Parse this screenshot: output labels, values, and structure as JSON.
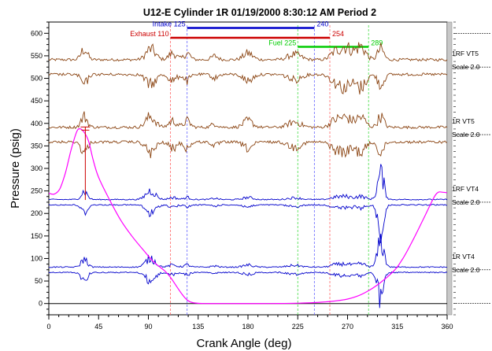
{
  "chart_data": {
    "type": "line",
    "title": "U12-E   Cylinder 1R   01/19/2000 8:30:12 AM Period 2",
    "xlabel": "Crank Angle (deg)",
    "ylabel": "Pressure (psig)",
    "xlim": [
      0,
      360
    ],
    "ylim": [
      -25,
      625
    ],
    "xticks": [
      0,
      45,
      90,
      135,
      180,
      225,
      270,
      315,
      360
    ],
    "yticks": [
      0,
      50,
      100,
      150,
      200,
      250,
      300,
      350,
      400,
      450,
      500,
      550,
      600
    ],
    "grid": false,
    "pressure_curve": {
      "color": "#ff00ff",
      "x": [
        0,
        5,
        10,
        15,
        20,
        25,
        28,
        32,
        36,
        40,
        45,
        55,
        65,
        75,
        85,
        95,
        105,
        110,
        115,
        120,
        125,
        130,
        140,
        160,
        200,
        240,
        270,
        290,
        310,
        320,
        330,
        340,
        348,
        352,
        356,
        360
      ],
      "y": [
        245,
        243,
        255,
        290,
        340,
        380,
        388,
        380,
        360,
        320,
        280,
        230,
        185,
        150,
        120,
        92,
        72,
        58,
        40,
        22,
        8,
        2,
        0,
        0,
        0,
        2,
        10,
        30,
        68,
        100,
        145,
        195,
        235,
        247,
        247,
        246
      ]
    },
    "peak_marker": {
      "x": 33,
      "y_low": 230,
      "y_high": 392,
      "y_tick": 375,
      "color": "#cc0000"
    },
    "valve_events": [
      {
        "label": "Intake",
        "start": 125,
        "end": 240,
        "y": 612,
        "color": "#0000cc"
      },
      {
        "label": "Exhaust",
        "start": 110,
        "end": 254,
        "y": 590,
        "color": "#cc0000"
      },
      {
        "label": "Fuel",
        "start": 225,
        "end": 289,
        "y": 570,
        "color": "#00cc00"
      }
    ],
    "vibration_traces": [
      {
        "name": "1RF VT5",
        "scale": "Scale 2.0",
        "baseline": 525,
        "color": "#8B4513"
      },
      {
        "name": "1R VT5",
        "scale": "Scale 2.0",
        "baseline": 375,
        "color": "#8B4513"
      },
      {
        "name": "1RF VT4",
        "scale": "Scale 2.0",
        "baseline": 225,
        "color": "#0000cc"
      },
      {
        "name": "1R VT4",
        "scale": "Scale 2.0",
        "baseline": 75,
        "color": "#0000cc"
      }
    ],
    "value_labels": {
      "intake_start": "125",
      "intake_end": "240",
      "exhaust_start": "110",
      "exhaust_end": "254",
      "fuel_start": "225",
      "fuel_end": "289"
    }
  }
}
